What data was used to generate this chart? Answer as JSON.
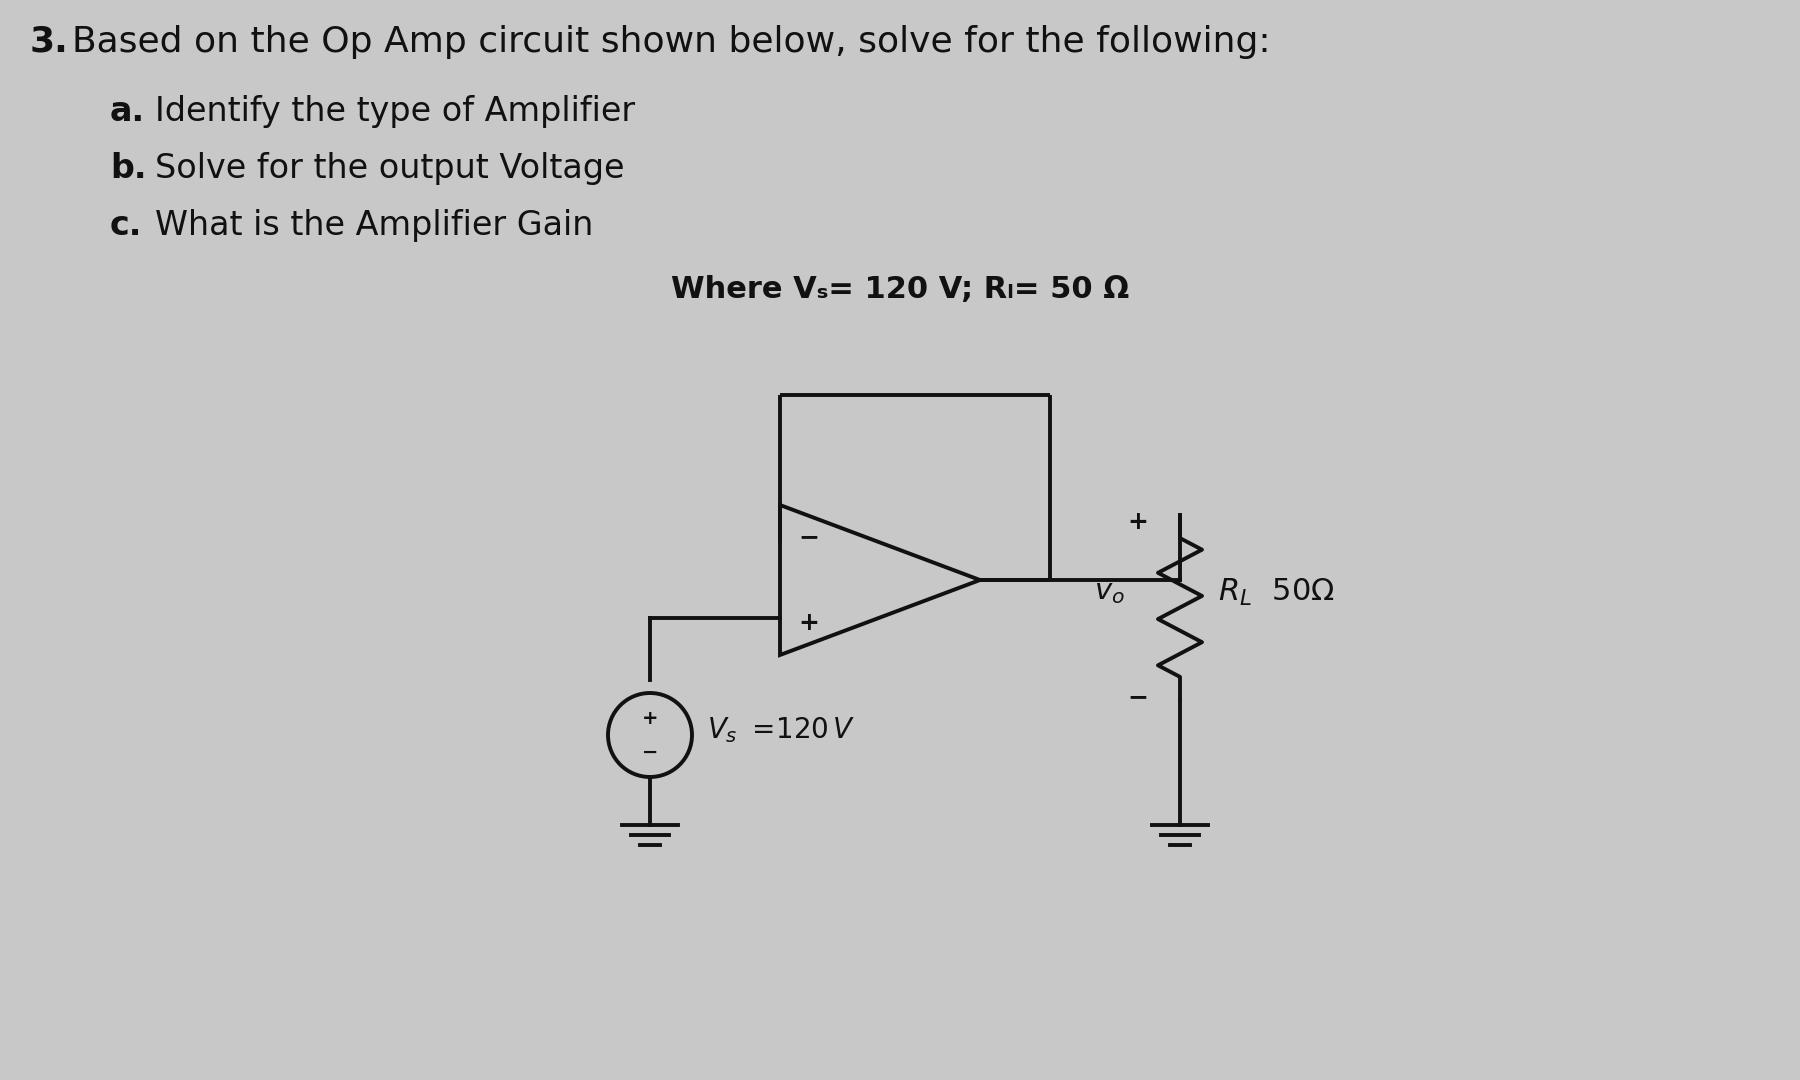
{
  "bg_color": "#c8c8c8",
  "text_color": "#111111",
  "line_color": "#111111",
  "circuit_lw": 2.8,
  "title_num": "3.",
  "title_text": "Based on the Op Amp circuit shown below, solve for the following:",
  "item_a_label": "a.",
  "item_a_text": "Identify the type of Amplifier",
  "item_b_label": "b.",
  "item_b_text": "Solve for the output Voltage",
  "item_c_label": "c.",
  "item_c_text": "What is the Amplifier Gain",
  "where_text": "Where Vₛ= 120 V; Rₗ= 50 Ω",
  "font_size_title": 26,
  "font_size_items": 24,
  "font_size_where": 22
}
